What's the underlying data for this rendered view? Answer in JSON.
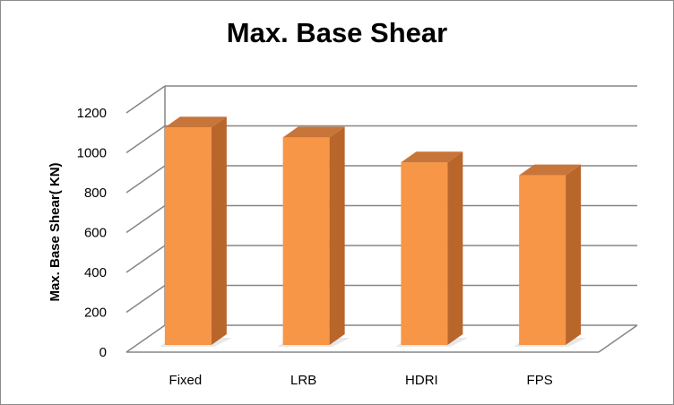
{
  "chart_data": {
    "type": "bar",
    "title": "Max. Base Shear",
    "xlabel": "",
    "ylabel": "Max. Base Shear( KN)",
    "categories": [
      "Fixed",
      "LRB",
      "HDRI",
      "FPS"
    ],
    "values": [
      1100,
      1050,
      925,
      860
    ],
    "ylim": [
      0,
      1200
    ],
    "yticks": [
      0,
      200,
      400,
      600,
      800,
      1000,
      1200
    ],
    "grid": true,
    "legend": "none",
    "style": "3d-column",
    "colors": {
      "bar_front": "#F79646",
      "bar_side": "#B9662B",
      "bar_top": "#C8753A",
      "grid": "#868686"
    }
  }
}
